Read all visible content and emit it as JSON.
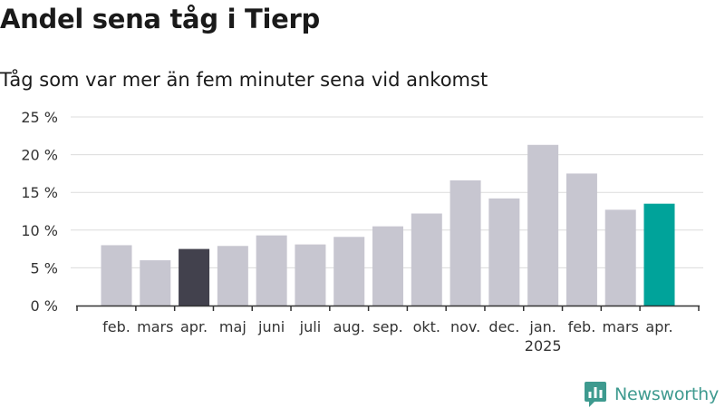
{
  "chart_data": {
    "type": "bar",
    "title": "Andel sena tåg i Tierp",
    "subtitle": "Tåg som var mer än fem minuter sena vid ankomst",
    "categories": [
      "feb.",
      "mars",
      "apr.",
      "maj",
      "juni",
      "juli",
      "aug.",
      "sep.",
      "okt.",
      "nov.",
      "dec.",
      "jan.",
      "feb.",
      "mars",
      "apr."
    ],
    "year_label": "2025",
    "year_label_category": "jan.",
    "values": [
      8.0,
      6.0,
      7.5,
      7.9,
      9.3,
      8.1,
      9.1,
      10.5,
      12.2,
      16.6,
      14.2,
      21.3,
      17.5,
      12.7,
      13.5
    ],
    "highlight": {
      "2": "#42414d",
      "14": "#00a39a"
    },
    "default_color": "#c7c6d0",
    "ylim": [
      0,
      25
    ],
    "yticks": [
      0,
      5,
      10,
      15,
      20,
      25
    ],
    "ytick_labels": [
      "0 %",
      "5 %",
      "10 %",
      "15 %",
      "20 %",
      "25 %"
    ],
    "grid": true,
    "xlabel": "",
    "ylabel": ""
  },
  "brand": {
    "name": "Newsworthy",
    "logo_icon": "bar-chart-badge-icon",
    "color": "#3e9a8f"
  }
}
